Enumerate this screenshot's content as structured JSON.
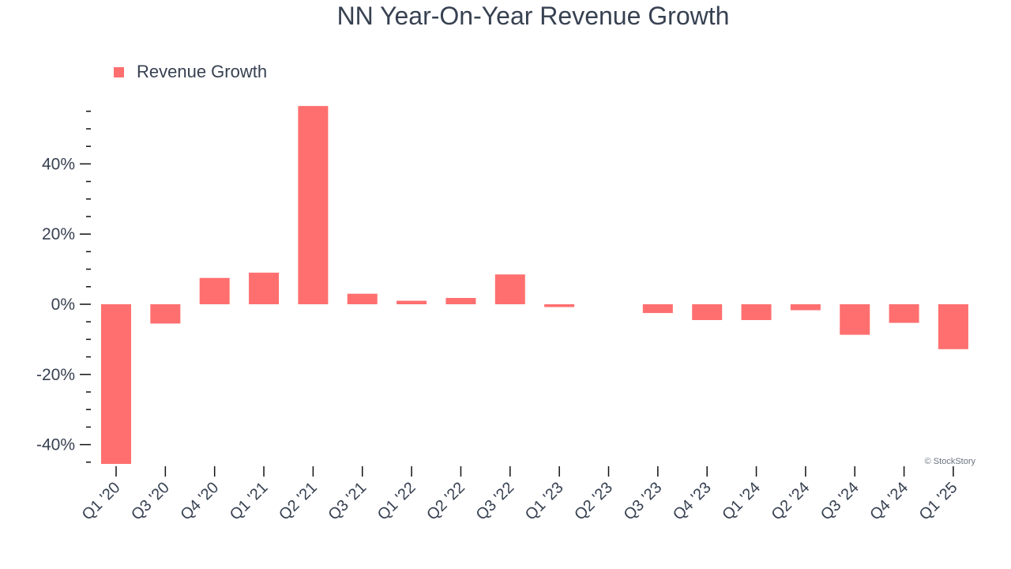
{
  "chart_data": {
    "type": "bar",
    "title": "NN Year-On-Year Revenue Growth",
    "xlabel": "",
    "ylabel": "",
    "categories": [
      "Q1 '20",
      "Q3 '20",
      "Q4 '20",
      "Q1 '21",
      "Q2 '21",
      "Q3 '21",
      "Q1 '22",
      "Q2 '22",
      "Q3 '22",
      "Q1 '23",
      "Q2 '23",
      "Q3 '23",
      "Q4 '23",
      "Q1 '24",
      "Q2 '24",
      "Q3 '24",
      "Q4 '24",
      "Q1 '25"
    ],
    "series": [
      {
        "name": "Revenue Growth",
        "values": [
          -45.5,
          -5.5,
          7.5,
          9.0,
          56.5,
          3.0,
          1.0,
          1.8,
          8.5,
          -0.8,
          0.0,
          -2.5,
          -4.5,
          -4.5,
          -1.7,
          -8.7,
          -5.3,
          -12.8
        ]
      }
    ],
    "ylim": [
      -45.5,
      57
    ],
    "yticks": [
      -40,
      -20,
      0,
      20,
      40
    ],
    "ytick_labels": [
      "-40%",
      "-20%",
      "0%",
      "20%",
      "40%"
    ],
    "y_minor_step": 5,
    "grid": false,
    "legend_position": "top-left"
  },
  "colors": {
    "bar": "#ff6f6f",
    "text": "#374151",
    "axis": "#111111"
  },
  "watermark": "© StockStory"
}
